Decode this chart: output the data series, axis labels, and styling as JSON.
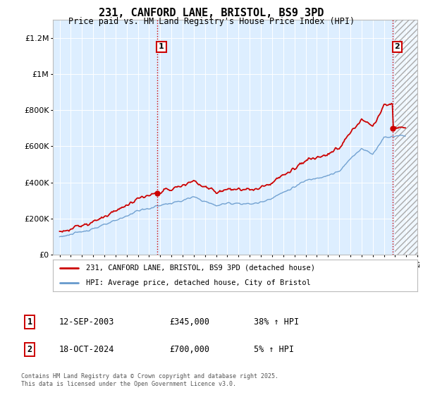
{
  "title": "231, CANFORD LANE, BRISTOL, BS9 3PD",
  "subtitle": "Price paid vs. HM Land Registry's House Price Index (HPI)",
  "hpi_label": "HPI: Average price, detached house, City of Bristol",
  "property_label": "231, CANFORD LANE, BRISTOL, BS9 3PD (detached house)",
  "sale1_date": "12-SEP-2003",
  "sale1_price": 345000,
  "sale1_hpi_text": "38% ↑ HPI",
  "sale2_date": "18-OCT-2024",
  "sale2_price": 700000,
  "sale2_hpi_text": "5% ↑ HPI",
  "footnote": "Contains HM Land Registry data © Crown copyright and database right 2025.\nThis data is licensed under the Open Government Licence v3.0.",
  "hpi_color": "#6699cc",
  "property_color": "#cc0000",
  "sale1_x": 2003.71,
  "sale2_x": 2024.79,
  "bg_color": "#ddeeff",
  "ylim": [
    0,
    1300000
  ],
  "xlim_start": 1994.4,
  "xlim_end": 2027.0
}
